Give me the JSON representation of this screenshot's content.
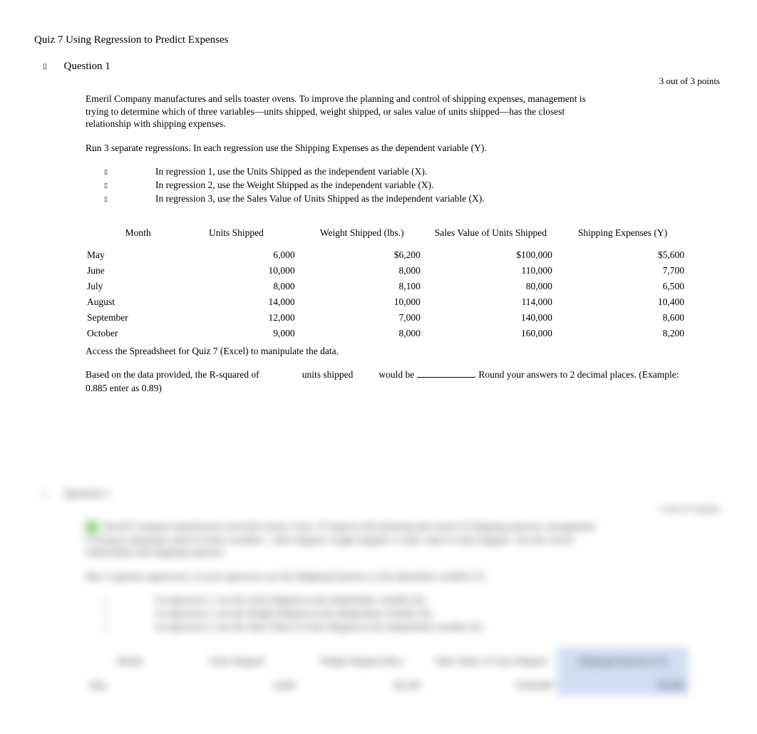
{
  "quiz": {
    "title": "Quiz 7 Using Regression to Predict Expenses"
  },
  "question": {
    "number_label": "Question 1",
    "points_label": "3 out of 3 points",
    "intro": "Emeril Company manufactures and sells toaster ovens. To improve the planning and control of shipping expenses, management is trying to determine which of three variables—units shipped, weight shipped, or sales value of units shipped—has the closest relationship with shipping expenses.",
    "run_line": "Run 3 separate regressions. In each regression use the Shipping Expenses as the dependent variable (Y).",
    "bullets": [
      "In regression 1, use the Units Shipped as the independent variable (X).",
      "In regression 2, use the Weight Shipped as the independent variable (X).",
      "In regression 3, use the Sales Value of Units Shipped as the independent variable (X)."
    ],
    "access_line": "Access the Spreadsheet for Quiz 7 (Excel) to manipulate the data.",
    "fill_prefix": "Based on the data provided, the R-squared of",
    "fill_mid": "units shipped",
    "fill_mid2": "would be ",
    "fill_suffix": ". Round your answers to 2 decimal places. (Example: 0.885 enter as 0.89)"
  },
  "table": {
    "columns": [
      "Month",
      "Units Shipped",
      "Weight Shipped (lbs.)",
      "Sales Value of Units Shipped",
      "Shipping Expenses (Y)"
    ],
    "rows": [
      [
        "May",
        "6,000",
        "$6,200",
        "$100,000",
        "$5,600"
      ],
      [
        "June",
        "10,000",
        "8,000",
        "110,000",
        "7,700"
      ],
      [
        "July",
        "8,000",
        "8,100",
        "80,000",
        "6,500"
      ],
      [
        "August",
        "14,000",
        "10,000",
        "114,000",
        "10,400"
      ],
      [
        "September",
        "12,000",
        "7,000",
        "140,000",
        "8,600"
      ],
      [
        "October",
        "9,000",
        "8,000",
        "160,000",
        "8,200"
      ]
    ]
  },
  "colors": {
    "text": "#000000",
    "background": "#ffffff",
    "highlight_blue": "#c8d9ef",
    "highlight_green": "#7cc668"
  }
}
